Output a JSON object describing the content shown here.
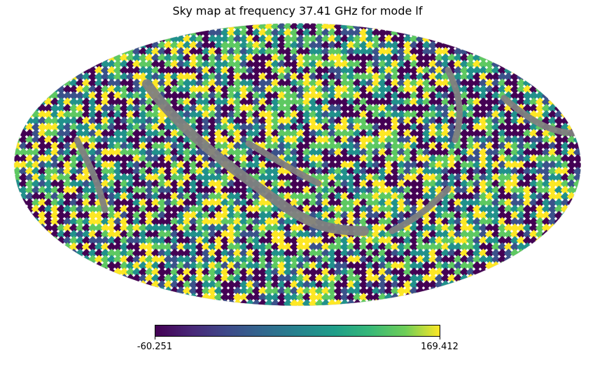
{
  "title": "Sky map at frequency 37.41 GHz for mode lf",
  "map": {
    "projection": "mollweide",
    "colormap": "viridis",
    "masked_color": "#808080",
    "colors": [
      "#440154",
      "#3b528b",
      "#21918c",
      "#5ec962",
      "#fde725"
    ]
  },
  "colorbar": {
    "min_label": "-60.251",
    "max_label": "169.412",
    "min": -60.251,
    "max": 169.412
  }
}
